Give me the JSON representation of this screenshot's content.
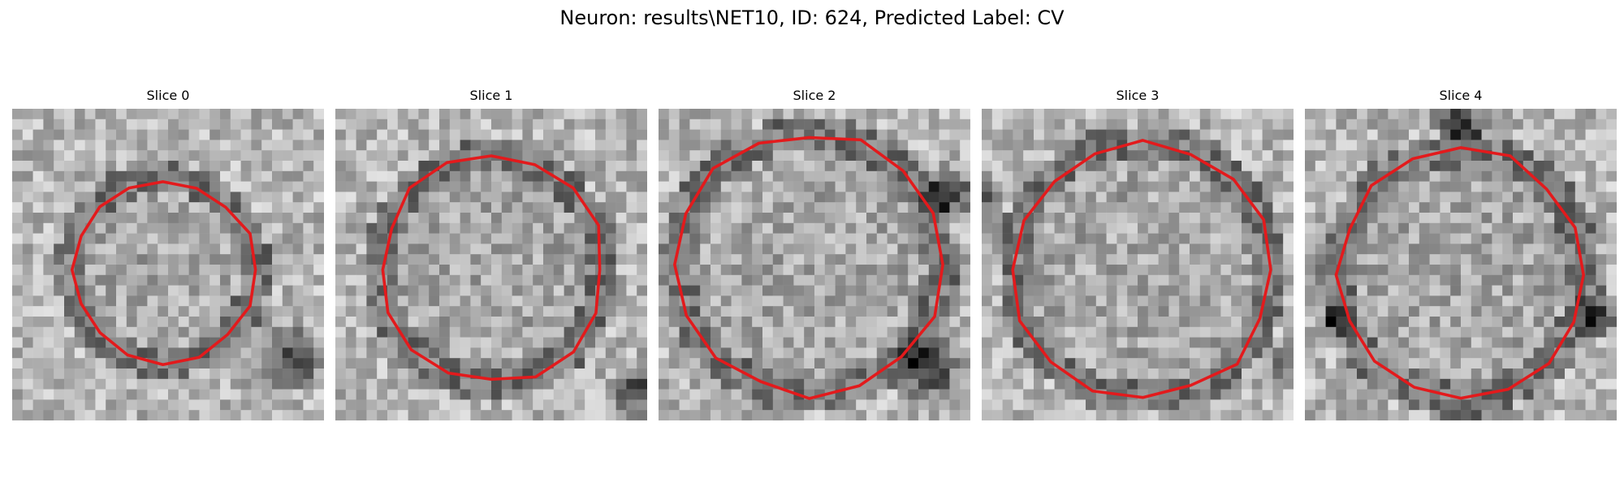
{
  "figure": {
    "title": "Neuron: results\\NET10, ID: 624, Predicted Label: CV"
  },
  "colors": {
    "contour": "#e31a1c",
    "background": "#ffffff",
    "colormap": "gray"
  },
  "slices": [
    {
      "title": "Slice 0"
    },
    {
      "title": "Slice 1"
    },
    {
      "title": "Slice 2"
    },
    {
      "title": "Slice 3"
    },
    {
      "title": "Slice 4"
    }
  ]
}
